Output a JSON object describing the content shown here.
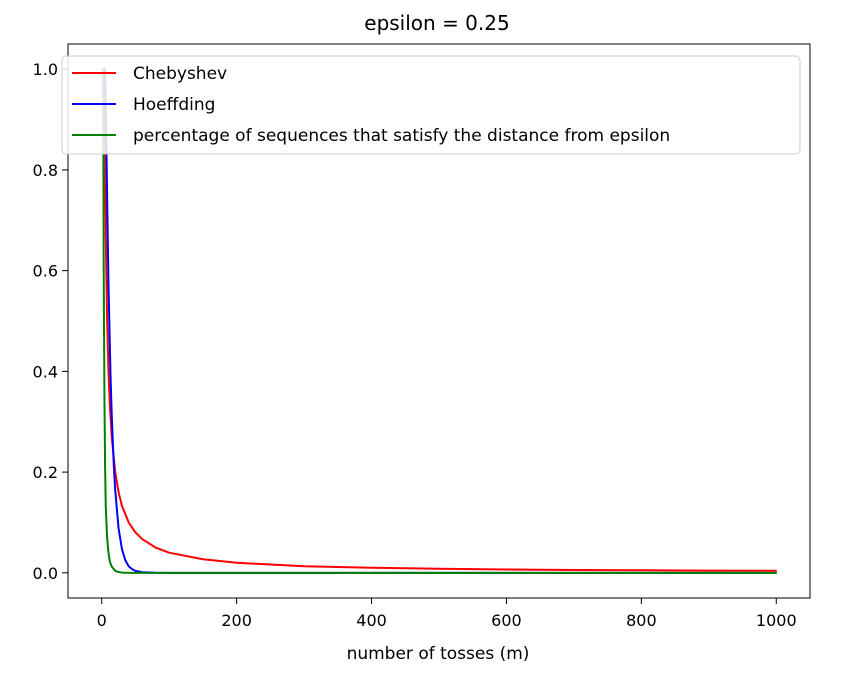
{
  "chart_data": {
    "type": "line",
    "title": "epsilon = 0.25",
    "xlabel": "number of tosses (m)",
    "ylabel": "",
    "xlim": [
      -50,
      1050
    ],
    "ylim": [
      -0.05,
      1.05
    ],
    "x_ticks": [
      0,
      200,
      400,
      600,
      800,
      1000
    ],
    "y_ticks": [
      0.0,
      0.2,
      0.4,
      0.6,
      0.8,
      1.0
    ],
    "x_tick_labels": [
      "0",
      "200",
      "400",
      "600",
      "800",
      "1000"
    ],
    "y_tick_labels": [
      "0.0",
      "0.2",
      "0.4",
      "0.6",
      "0.8",
      "1.0"
    ],
    "grid": false,
    "legend_position": "top-left",
    "series": [
      {
        "name": "Chebyshev",
        "color": "#ff0000",
        "x": [
          1,
          4,
          6,
          8,
          10,
          12,
          15,
          20,
          25,
          30,
          40,
          50,
          60,
          80,
          100,
          150,
          200,
          300,
          400,
          500,
          600,
          700,
          800,
          900,
          1000
        ],
        "y": [
          1.0,
          1.0,
          0.667,
          0.5,
          0.4,
          0.333,
          0.267,
          0.2,
          0.16,
          0.133,
          0.1,
          0.08,
          0.067,
          0.05,
          0.04,
          0.027,
          0.02,
          0.013,
          0.01,
          0.008,
          0.0067,
          0.0057,
          0.005,
          0.0044,
          0.004
        ]
      },
      {
        "name": "Hoeffding",
        "color": "#0000ff",
        "x": [
          1,
          2,
          3,
          5,
          7,
          10,
          13,
          15,
          18,
          20,
          25,
          30,
          35,
          40,
          45,
          50,
          60,
          80,
          100,
          200,
          400,
          600,
          800,
          1000
        ],
        "y": [
          1.0,
          1.0,
          1.0,
          1.0,
          0.835,
          0.573,
          0.394,
          0.306,
          0.21,
          0.164,
          0.088,
          0.047,
          0.025,
          0.013,
          0.0073,
          0.0039,
          0.0011,
          0.0001,
          0.0,
          0.0,
          0.0,
          0.0,
          0.0,
          0.0
        ]
      },
      {
        "name": "percentage of sequences that satisfy the distance from epsilon",
        "color": "#008000",
        "x": [
          1,
          2,
          3,
          4,
          5,
          6,
          8,
          10,
          12,
          15,
          20,
          25,
          30,
          40,
          50,
          60,
          80,
          100,
          200,
          400,
          600,
          800,
          1000
        ],
        "y": [
          1.0,
          1.0,
          0.58,
          0.35,
          0.21,
          0.13,
          0.07,
          0.04,
          0.022,
          0.012,
          0.004,
          0.0015,
          0.0005,
          0.0001,
          0.0,
          0.0,
          0.0,
          0.0,
          0.0,
          0.0,
          0.0,
          0.0,
          0.0
        ]
      }
    ]
  }
}
